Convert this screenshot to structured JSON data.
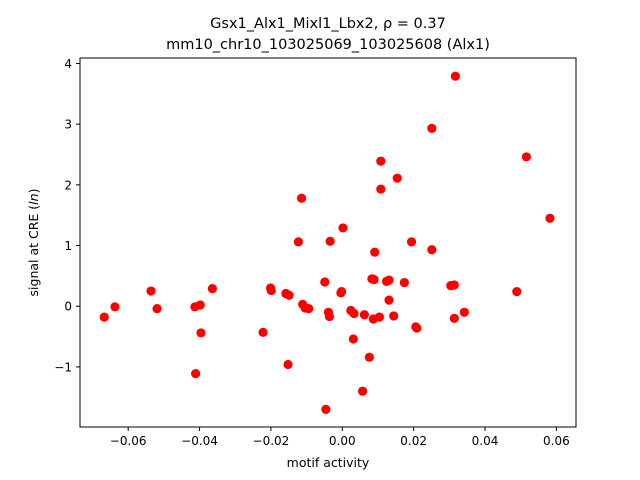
{
  "chart_data": {
    "type": "scatter",
    "title": "Gsx1_Alx1_Mixl1_Lbx2, ρ = 0.37",
    "subtitle": "mm10_chr10_103025069_103025608 (Alx1)",
    "xlabel": "motif activity",
    "ylabel": "signal at CRE (ln)",
    "xlim": [
      -0.0735,
      0.0655
    ],
    "ylim": [
      -1.99,
      4.09
    ],
    "xticks": [
      -0.06,
      -0.04,
      -0.02,
      0.0,
      0.02,
      0.04,
      0.06
    ],
    "xtick_labels": [
      "−0.06",
      "−0.04",
      "−0.02",
      "0.00",
      "0.02",
      "0.04",
      "0.06"
    ],
    "yticks": [
      -1,
      0,
      1,
      2,
      3,
      4
    ],
    "ytick_labels": [
      "−1",
      "0",
      "1",
      "2",
      "3",
      "4"
    ],
    "grid": false,
    "marker_color": "#ff0000",
    "points": [
      {
        "x": -0.0667,
        "y": -0.18
      },
      {
        "x": -0.0637,
        "y": -0.01
      },
      {
        "x": -0.0536,
        "y": 0.25
      },
      {
        "x": -0.0519,
        "y": -0.04
      },
      {
        "x": -0.0411,
        "y": -1.11
      },
      {
        "x": -0.0413,
        "y": -0.01
      },
      {
        "x": -0.0398,
        "y": 0.02
      },
      {
        "x": -0.0396,
        "y": -0.44
      },
      {
        "x": -0.0364,
        "y": 0.29
      },
      {
        "x": -0.0222,
        "y": -0.43
      },
      {
        "x": -0.0201,
        "y": 0.3
      },
      {
        "x": -0.0199,
        "y": 0.26
      },
      {
        "x": -0.0158,
        "y": 0.21
      },
      {
        "x": -0.0152,
        "y": -0.96
      },
      {
        "x": -0.0149,
        "y": 0.18
      },
      {
        "x": -0.0123,
        "y": 1.06
      },
      {
        "x": -0.0114,
        "y": 1.78
      },
      {
        "x": -0.0111,
        "y": 0.03
      },
      {
        "x": -0.0104,
        "y": -0.03
      },
      {
        "x": -0.0094,
        "y": -0.04
      },
      {
        "x": -0.0049,
        "y": 0.4
      },
      {
        "x": -0.0046,
        "y": -1.7
      },
      {
        "x": -0.0039,
        "y": -0.1
      },
      {
        "x": -0.0036,
        "y": -0.17
      },
      {
        "x": -0.0034,
        "y": 1.07
      },
      {
        "x": -0.0004,
        "y": 0.22
      },
      {
        "x": -0.0002,
        "y": 0.24
      },
      {
        "x": 0.0002,
        "y": 1.29
      },
      {
        "x": 0.0024,
        "y": -0.07
      },
      {
        "x": 0.0031,
        "y": -0.54
      },
      {
        "x": 0.0033,
        "y": -0.12
      },
      {
        "x": 0.0057,
        "y": -1.4
      },
      {
        "x": 0.0062,
        "y": -0.14
      },
      {
        "x": 0.0076,
        "y": -0.84
      },
      {
        "x": 0.0083,
        "y": 0.45
      },
      {
        "x": 0.0087,
        "y": -0.21
      },
      {
        "x": 0.0089,
        "y": 0.44
      },
      {
        "x": 0.0091,
        "y": 0.89
      },
      {
        "x": 0.0104,
        "y": -0.18
      },
      {
        "x": 0.0108,
        "y": 2.39
      },
      {
        "x": 0.0108,
        "y": 1.93
      },
      {
        "x": 0.0124,
        "y": 0.41
      },
      {
        "x": 0.0131,
        "y": 0.43
      },
      {
        "x": 0.0131,
        "y": 0.1
      },
      {
        "x": 0.0144,
        "y": -0.16
      },
      {
        "x": 0.0154,
        "y": 2.11
      },
      {
        "x": 0.0174,
        "y": 0.39
      },
      {
        "x": 0.0194,
        "y": 1.06
      },
      {
        "x": 0.0206,
        "y": -0.34
      },
      {
        "x": 0.0209,
        "y": -0.36
      },
      {
        "x": 0.0251,
        "y": 2.93
      },
      {
        "x": 0.0251,
        "y": 0.93
      },
      {
        "x": 0.0304,
        "y": 0.34
      },
      {
        "x": 0.0314,
        "y": 0.35
      },
      {
        "x": 0.0317,
        "y": 3.79
      },
      {
        "x": 0.0314,
        "y": -0.2
      },
      {
        "x": 0.0342,
        "y": -0.1
      },
      {
        "x": 0.0489,
        "y": 0.24
      },
      {
        "x": 0.0516,
        "y": 2.46
      },
      {
        "x": 0.0582,
        "y": 1.45
      }
    ]
  }
}
